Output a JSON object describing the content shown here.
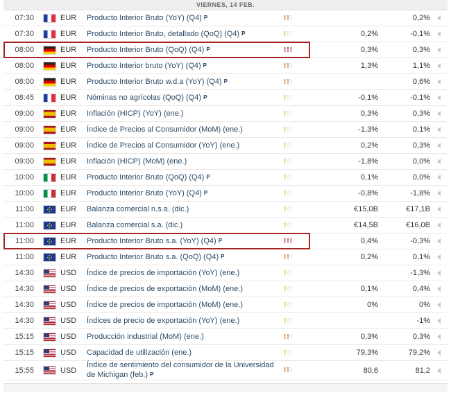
{
  "header": {
    "date_label": "VIERNES, 14 FEB."
  },
  "colors": {
    "highlight_box": "#a82424",
    "importance_yellow": "#d2bb06",
    "importance_orange": "#c4701c",
    "importance_red": "#a32020",
    "event_link": "#2a4a66",
    "header_bg": "#efefef"
  },
  "icons": {
    "importance_glyph": "!",
    "expand_arrow": "left-triangle-icon",
    "preliminary_marker": "P"
  },
  "rows": [
    {
      "time": "07:30",
      "country": "fr",
      "currency": "EUR",
      "event": "Producto Interior Bruto (YoY) (Q4)",
      "prelim": true,
      "importance": 2,
      "forecast": "",
      "previous": "0,2%",
      "highlighted": false
    },
    {
      "time": "07:30",
      "country": "fr",
      "currency": "EUR",
      "event": "Producto Interior Bruto, detallado (QoQ) (Q4)",
      "prelim": true,
      "importance": 1,
      "forecast": "0,2%",
      "previous": "-0,1%",
      "highlighted": false
    },
    {
      "time": "08:00",
      "country": "de",
      "currency": "EUR",
      "event": "Producto Interior Bruto (QoQ) (Q4)",
      "prelim": true,
      "importance": 3,
      "forecast": "0,3%",
      "previous": "0,3%",
      "highlighted": true
    },
    {
      "time": "08:00",
      "country": "de",
      "currency": "EUR",
      "event": "Producto Interior bruto (YoY) (Q4)",
      "prelim": true,
      "importance": 2,
      "forecast": "1,3%",
      "previous": "1,1%",
      "highlighted": false
    },
    {
      "time": "08:00",
      "country": "de",
      "currency": "EUR",
      "event": "Producto Interior Bruto w.d.a (YoY) (Q4)",
      "prelim": true,
      "importance": 2,
      "forecast": "",
      "previous": "0,6%",
      "highlighted": false
    },
    {
      "time": "08:45",
      "country": "fr",
      "currency": "EUR",
      "event": "Nóminas no agrícolas (QoQ) (Q4)",
      "prelim": true,
      "importance": 1,
      "forecast": "-0,1%",
      "previous": "-0,1%",
      "highlighted": false
    },
    {
      "time": "09:00",
      "country": "es",
      "currency": "EUR",
      "event": "Inflación (HICP) (YoY) (ene.)",
      "prelim": false,
      "importance": 1,
      "forecast": "0,3%",
      "previous": "0,3%",
      "highlighted": false
    },
    {
      "time": "09:00",
      "country": "es",
      "currency": "EUR",
      "event": "Índice de Precios al Consumidor (MoM) (ene.)",
      "prelim": false,
      "importance": 1,
      "forecast": "-1,3%",
      "previous": "0,1%",
      "highlighted": false
    },
    {
      "time": "09:00",
      "country": "es",
      "currency": "EUR",
      "event": "Índice de Precios al Consumidor (YoY) (ene.)",
      "prelim": false,
      "importance": 1,
      "forecast": "0,2%",
      "previous": "0,3%",
      "highlighted": false
    },
    {
      "time": "09:00",
      "country": "es",
      "currency": "EUR",
      "event": "Inflación (HICP) (MoM) (ene.)",
      "prelim": false,
      "importance": 1,
      "forecast": "-1,8%",
      "previous": "0,0%",
      "highlighted": false
    },
    {
      "time": "10:00",
      "country": "it",
      "currency": "EUR",
      "event": "Producto Interior Bruto (QoQ) (Q4)",
      "prelim": true,
      "importance": 1,
      "forecast": "0,1%",
      "previous": "0,0%",
      "highlighted": false
    },
    {
      "time": "10:00",
      "country": "it",
      "currency": "EUR",
      "event": "Producto Interior Bruto (YoY) (Q4)",
      "prelim": true,
      "importance": 1,
      "forecast": "-0,8%",
      "previous": "-1,8%",
      "highlighted": false
    },
    {
      "time": "11:00",
      "country": "eu",
      "currency": "EUR",
      "event": "Balanza comercial n.s.a. (dic.)",
      "prelim": false,
      "importance": 1,
      "forecast": "€15,0B",
      "previous": "€17,1B",
      "highlighted": false
    },
    {
      "time": "11:00",
      "country": "eu",
      "currency": "EUR",
      "event": "Balanza comercial s.a. (dic.)",
      "prelim": false,
      "importance": 1,
      "forecast": "€14,5B",
      "previous": "€16,0B",
      "highlighted": false
    },
    {
      "time": "11:00",
      "country": "eu",
      "currency": "EUR",
      "event": "Producto Interior Bruto s.a. (YoY) (Q4)",
      "prelim": true,
      "importance": 3,
      "forecast": "0,4%",
      "previous": "-0,3%",
      "highlighted": true
    },
    {
      "time": "11:00",
      "country": "eu",
      "currency": "EUR",
      "event": "Producto Interior Bruto s.a. (QoQ) (Q4)",
      "prelim": true,
      "importance": 2,
      "forecast": "0,2%",
      "previous": "0,1%",
      "highlighted": false
    },
    {
      "time": "14:30",
      "country": "us",
      "currency": "USD",
      "event": "Índice de precios de importación (YoY) (ene.)",
      "prelim": false,
      "importance": 1,
      "forecast": "",
      "previous": "-1,3%",
      "highlighted": false
    },
    {
      "time": "14:30",
      "country": "us",
      "currency": "USD",
      "event": "Índice de precios de exportación (MoM) (ene.)",
      "prelim": false,
      "importance": 1,
      "forecast": "0,1%",
      "previous": "0,4%",
      "highlighted": false
    },
    {
      "time": "14:30",
      "country": "us",
      "currency": "USD",
      "event": "Índice de precios de importación (MoM) (ene.)",
      "prelim": false,
      "importance": 1,
      "forecast": "0%",
      "previous": "0%",
      "highlighted": false
    },
    {
      "time": "14:30",
      "country": "us",
      "currency": "USD",
      "event": "Índices de precio de exportación (YoY) (ene.)",
      "prelim": false,
      "importance": 1,
      "forecast": "",
      "previous": "-1%",
      "highlighted": false
    },
    {
      "time": "15:15",
      "country": "us",
      "currency": "USD",
      "event": "Producción industrial (MoM) (ene.)",
      "prelim": false,
      "importance": 2,
      "forecast": "0,3%",
      "previous": "0,3%",
      "highlighted": false
    },
    {
      "time": "15:15",
      "country": "us",
      "currency": "USD",
      "event": "Capacidad de utilización (ene.)",
      "prelim": false,
      "importance": 1,
      "forecast": "79,3%",
      "previous": "79,2%",
      "highlighted": false
    },
    {
      "time": "15:55",
      "country": "us",
      "currency": "USD",
      "event": "Índice de sentimiento del consumidor de la Universidad de Michigan (feb.)",
      "prelim": true,
      "importance": 2,
      "forecast": "80,6",
      "previous": "81,2",
      "highlighted": false
    }
  ]
}
